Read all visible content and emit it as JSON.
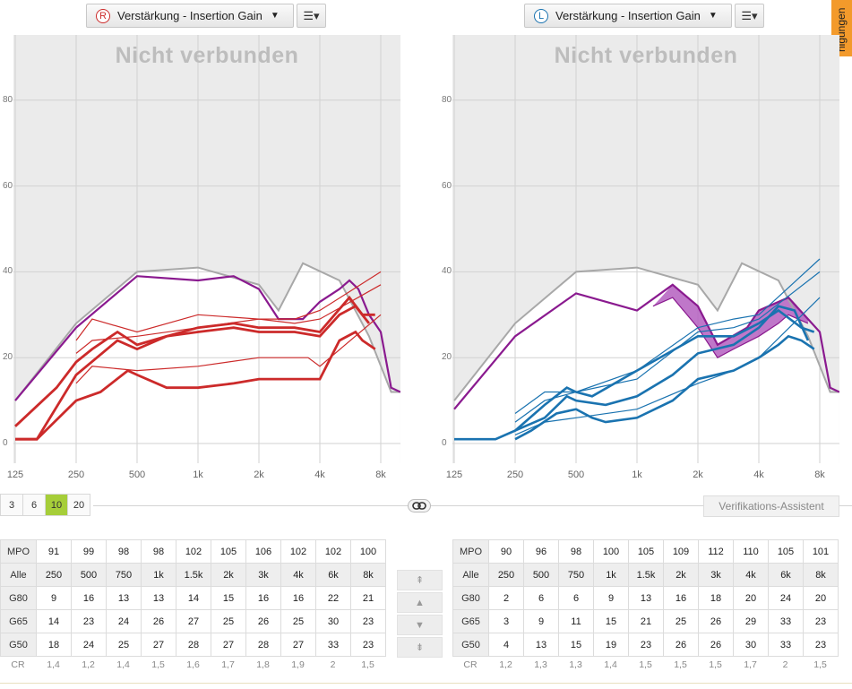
{
  "side_tab": {
    "label": "nigungen"
  },
  "left": {
    "dropdown": {
      "ear_letter": "R",
      "label": "Verstärkung - Insertion Gain",
      "ear_color": "#cc2a2a"
    },
    "menu_icon": "☰▾",
    "status": "Nicht verbunden",
    "table": {
      "mpo_label": "MPO",
      "mpo": [
        "91",
        "99",
        "98",
        "98",
        "102",
        "105",
        "106",
        "102",
        "102",
        "100"
      ],
      "freq_label": "Alle",
      "freqs": [
        "250",
        "500",
        "750",
        "1k",
        "1.5k",
        "2k",
        "3k",
        "4k",
        "6k",
        "8k"
      ],
      "rows": [
        {
          "label": "G80",
          "values": [
            "9",
            "16",
            "13",
            "13",
            "14",
            "15",
            "16",
            "16",
            "22",
            "21"
          ]
        },
        {
          "label": "G65",
          "values": [
            "14",
            "23",
            "24",
            "26",
            "27",
            "25",
            "26",
            "25",
            "30",
            "23"
          ]
        },
        {
          "label": "G50",
          "values": [
            "18",
            "24",
            "25",
            "27",
            "28",
            "27",
            "28",
            "27",
            "33",
            "23"
          ]
        }
      ],
      "cr_label": "CR",
      "cr": [
        "1,4",
        "1,2",
        "1,4",
        "1,5",
        "1,6",
        "1,7",
        "1,8",
        "1,9",
        "2",
        "1,5"
      ]
    }
  },
  "right": {
    "dropdown": {
      "ear_letter": "L",
      "label": "Verstärkung - Insertion Gain",
      "ear_color": "#1a73b0"
    },
    "menu_icon": "☰▾",
    "status": "Nicht verbunden",
    "table": {
      "mpo_label": "MPO",
      "mpo": [
        "90",
        "96",
        "98",
        "100",
        "105",
        "109",
        "112",
        "110",
        "105",
        "101"
      ],
      "freq_label": "Alle",
      "freqs": [
        "250",
        "500",
        "750",
        "1k",
        "1.5k",
        "2k",
        "3k",
        "4k",
        "6k",
        "8k"
      ],
      "rows": [
        {
          "label": "G80",
          "values": [
            "2",
            "6",
            "6",
            "9",
            "13",
            "16",
            "18",
            "20",
            "24",
            "20"
          ]
        },
        {
          "label": "G65",
          "values": [
            "3",
            "9",
            "11",
            "15",
            "21",
            "25",
            "26",
            "29",
            "33",
            "23"
          ]
        },
        {
          "label": "G50",
          "values": [
            "4",
            "13",
            "15",
            "19",
            "23",
            "26",
            "26",
            "30",
            "33",
            "23"
          ]
        }
      ],
      "cr_label": "CR",
      "cr": [
        "1,2",
        "1,3",
        "1,3",
        "1,4",
        "1,5",
        "1,5",
        "1,5",
        "1,7",
        "2",
        "1,5"
      ]
    }
  },
  "x_ticks": [
    "125",
    "250",
    "500",
    "1k",
    "2k",
    "4k",
    "8k"
  ],
  "y_ticks": [
    "0",
    "20",
    "40",
    "60",
    "80"
  ],
  "step_buttons": [
    "3",
    "6",
    "10",
    "20"
  ],
  "step_selected": "10",
  "link_icon": "link-icon",
  "verification_button": "Verifikations-Assistent",
  "nav_buttons": [
    "⇞",
    "▲",
    "▼",
    "⇟"
  ],
  "colors": {
    "red": "#cc2a2a",
    "blue": "#1a73b0",
    "purple": "#8a1a8f",
    "grey": "#a8a8a8",
    "band": "#b45fc0",
    "selected": "#a6ce39"
  },
  "chart_data": [
    {
      "type": "line",
      "ear": "right",
      "xscale": "log",
      "xlim": [
        125,
        10000
      ],
      "ylim": [
        -5,
        95
      ],
      "grid": true,
      "series": [
        {
          "values": [
            [
              125,
              10
            ],
            [
              250,
              28
            ],
            [
              500,
              40
            ],
            [
              1000,
              41
            ],
            [
              2000,
              37
            ],
            [
              2500,
              31
            ],
            [
              3300,
              42
            ],
            [
              5000,
              38
            ],
            [
              7000,
              25
            ],
            [
              9000,
              12
            ],
            [
              10000,
              12
            ]
          ]
        },
        {
          "values": [
            [
              125,
              10
            ],
            [
              250,
              27
            ],
            [
              500,
              39
            ],
            [
              1000,
              38
            ],
            [
              1500,
              39
            ],
            [
              2000,
              36
            ],
            [
              2500,
              29
            ],
            [
              3300,
              29
            ],
            [
              4000,
              33
            ],
            [
              5000,
              36
            ],
            [
              5600,
              38
            ],
            [
              6200,
              36
            ],
            [
              7000,
              30
            ],
            [
              8000,
              26
            ],
            [
              9000,
              13
            ],
            [
              10000,
              12
            ]
          ]
        },
        {
          "values": [
            [
              250,
              24
            ],
            [
              300,
              29
            ],
            [
              500,
              26
            ],
            [
              1000,
              30
            ],
            [
              2000,
              29
            ],
            [
              3000,
              29
            ],
            [
              4000,
              31
            ],
            [
              8000,
              40
            ]
          ]
        },
        {
          "values": [
            [
              125,
              1
            ],
            [
              160,
              1
            ],
            [
              250,
              16
            ],
            [
              400,
              24
            ],
            [
              500,
              22
            ],
            [
              700,
              25
            ],
            [
              1000,
              27
            ],
            [
              1500,
              28
            ],
            [
              2000,
              27
            ],
            [
              3000,
              27
            ],
            [
              4000,
              26
            ],
            [
              5600,
              34
            ],
            [
              6500,
              30
            ],
            [
              7500,
              30
            ]
          ]
        },
        {
          "values": [
            [
              250,
              21
            ],
            [
              300,
              24
            ],
            [
              500,
              25
            ],
            [
              1000,
              27
            ],
            [
              2000,
              29
            ],
            [
              3000,
              28
            ],
            [
              4000,
              29
            ],
            [
              8000,
              37
            ]
          ]
        },
        {
          "values": [
            [
              125,
              4
            ],
            [
              200,
              13
            ],
            [
              250,
              19
            ],
            [
              300,
              22
            ],
            [
              400,
              26
            ],
            [
              500,
              23
            ],
            [
              700,
              25
            ],
            [
              1000,
              26
            ],
            [
              1500,
              27
            ],
            [
              2000,
              26
            ],
            [
              3000,
              26
            ],
            [
              4000,
              25
            ],
            [
              5000,
              30
            ],
            [
              6000,
              32
            ],
            [
              7000,
              28
            ]
          ]
        },
        {
          "values": [
            [
              250,
              14
            ],
            [
              300,
              18
            ],
            [
              500,
              17
            ],
            [
              1000,
              18
            ],
            [
              2000,
              20
            ],
            [
              3000,
              20
            ],
            [
              3500,
              20
            ],
            [
              4000,
              18
            ],
            [
              8000,
              30
            ]
          ]
        },
        {
          "values": [
            [
              125,
              1
            ],
            [
              160,
              1
            ],
            [
              250,
              10
            ],
            [
              330,
              12
            ],
            [
              450,
              17
            ],
            [
              500,
              16
            ],
            [
              700,
              13
            ],
            [
              1000,
              13
            ],
            [
              1500,
              14
            ],
            [
              2000,
              15
            ],
            [
              3000,
              15
            ],
            [
              4000,
              15
            ],
            [
              5000,
              24
            ],
            [
              6000,
              26
            ],
            [
              6500,
              24
            ],
            [
              7500,
              22
            ]
          ]
        }
      ]
    },
    {
      "type": "line",
      "ear": "left",
      "xscale": "log",
      "xlim": [
        125,
        10000
      ],
      "ylim": [
        -5,
        95
      ],
      "grid": true,
      "series": [
        {
          "values": [
            [
              125,
              10
            ],
            [
              250,
              28
            ],
            [
              500,
              40
            ],
            [
              1000,
              41
            ],
            [
              2000,
              37
            ],
            [
              2500,
              31
            ],
            [
              3300,
              42
            ],
            [
              5000,
              38
            ],
            [
              7000,
              25
            ],
            [
              9000,
              12
            ],
            [
              10000,
              12
            ]
          ]
        },
        {
          "values": [
            [
              125,
              8
            ],
            [
              250,
              25
            ],
            [
              500,
              35
            ],
            [
              1000,
              31
            ],
            [
              1500,
              37
            ],
            [
              2000,
              32
            ],
            [
              2500,
              23
            ],
            [
              3500,
              27
            ],
            [
              4000,
              31
            ],
            [
              5600,
              34
            ],
            [
              7000,
              29
            ],
            [
              8000,
              26
            ],
            [
              9000,
              13
            ],
            [
              10000,
              12
            ]
          ]
        },
        {
          "values": [
            [
              1200,
              32
            ],
            [
              1500,
              34
            ],
            [
              2000,
              27
            ],
            [
              2500,
              20
            ],
            [
              3000,
              22
            ],
            [
              4000,
              25
            ],
            [
              5000,
              28
            ],
            [
              5600,
              30
            ],
            [
              7000,
              28
            ]
          ]
        },
        {
          "values": [
            [
              250,
              7
            ],
            [
              350,
              12
            ],
            [
              500,
              12
            ],
            [
              1000,
              17
            ],
            [
              2000,
              27
            ],
            [
              3000,
              29
            ],
            [
              4000,
              30
            ],
            [
              8000,
              43
            ]
          ]
        },
        {
          "values": [
            [
              125,
              1
            ],
            [
              200,
              1
            ],
            [
              250,
              3
            ],
            [
              350,
              9
            ],
            [
              450,
              13
            ],
            [
              500,
              12
            ],
            [
              600,
              11
            ],
            [
              1000,
              17
            ],
            [
              2000,
              25
            ],
            [
              3000,
              25
            ],
            [
              4000,
              28
            ],
            [
              5000,
              31
            ],
            [
              6500,
              27
            ],
            [
              7500,
              26
            ]
          ]
        },
        {
          "values": [
            [
              250,
              5
            ],
            [
              350,
              10
            ],
            [
              500,
              12
            ],
            [
              1000,
              15
            ],
            [
              2000,
              26
            ],
            [
              3000,
              27
            ],
            [
              4000,
              29
            ],
            [
              8000,
              40
            ]
          ]
        },
        {
          "values": [
            [
              250,
              3
            ],
            [
              350,
              6
            ],
            [
              450,
              11
            ],
            [
              500,
              10
            ],
            [
              700,
              9
            ],
            [
              1000,
              11
            ],
            [
              1500,
              16
            ],
            [
              2000,
              21
            ],
            [
              3000,
              23
            ],
            [
              4000,
              27
            ],
            [
              5000,
              32
            ],
            [
              6000,
              31
            ],
            [
              7000,
              24
            ]
          ]
        },
        {
          "values": [
            [
              250,
              2
            ],
            [
              350,
              5
            ],
            [
              500,
              6
            ],
            [
              1000,
              8
            ],
            [
              2000,
              14
            ],
            [
              3000,
              17
            ],
            [
              4000,
              20
            ],
            [
              8000,
              34
            ]
          ]
        },
        {
          "values": [
            [
              250,
              1
            ],
            [
              300,
              3
            ],
            [
              400,
              7
            ],
            [
              500,
              8
            ],
            [
              600,
              6
            ],
            [
              700,
              5
            ],
            [
              1000,
              6
            ],
            [
              1500,
              10
            ],
            [
              2000,
              15
            ],
            [
              3000,
              17
            ],
            [
              4000,
              20
            ],
            [
              5000,
              23
            ],
            [
              5600,
              25
            ],
            [
              6500,
              24
            ],
            [
              7500,
              22
            ]
          ]
        }
      ]
    }
  ]
}
